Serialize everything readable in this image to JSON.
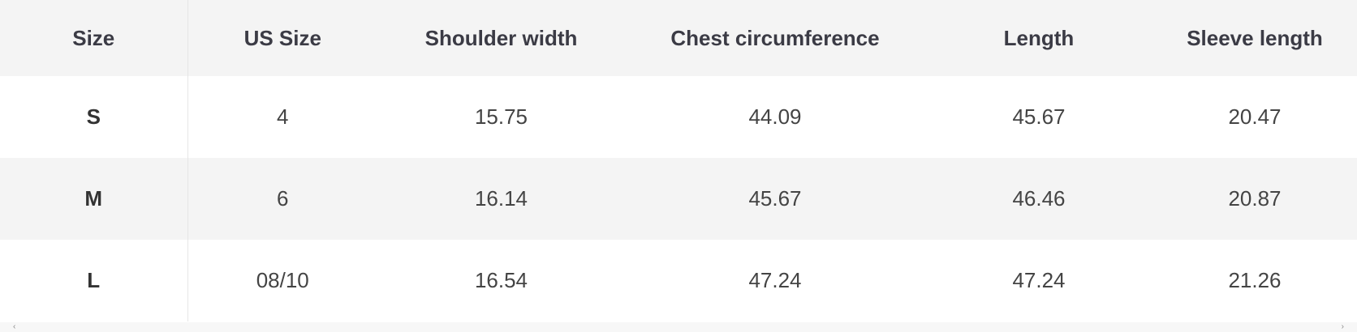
{
  "table": {
    "headers": [
      "Size",
      "US Size",
      "Shoulder width",
      "Chest circumference",
      "Length",
      "Sleeve length"
    ],
    "rows": [
      [
        "S",
        "4",
        "15.75",
        "44.09",
        "45.67",
        "20.47"
      ],
      [
        "M",
        "6",
        "16.14",
        "45.67",
        "46.46",
        "20.87"
      ],
      [
        "L",
        "08/10",
        "16.54",
        "47.24",
        "47.24",
        "21.26"
      ]
    ]
  },
  "scrollbar": {
    "left_icon": "chevron-left-icon",
    "right_icon": "chevron-right-icon",
    "left_glyph": "‹",
    "right_glyph": "›"
  }
}
